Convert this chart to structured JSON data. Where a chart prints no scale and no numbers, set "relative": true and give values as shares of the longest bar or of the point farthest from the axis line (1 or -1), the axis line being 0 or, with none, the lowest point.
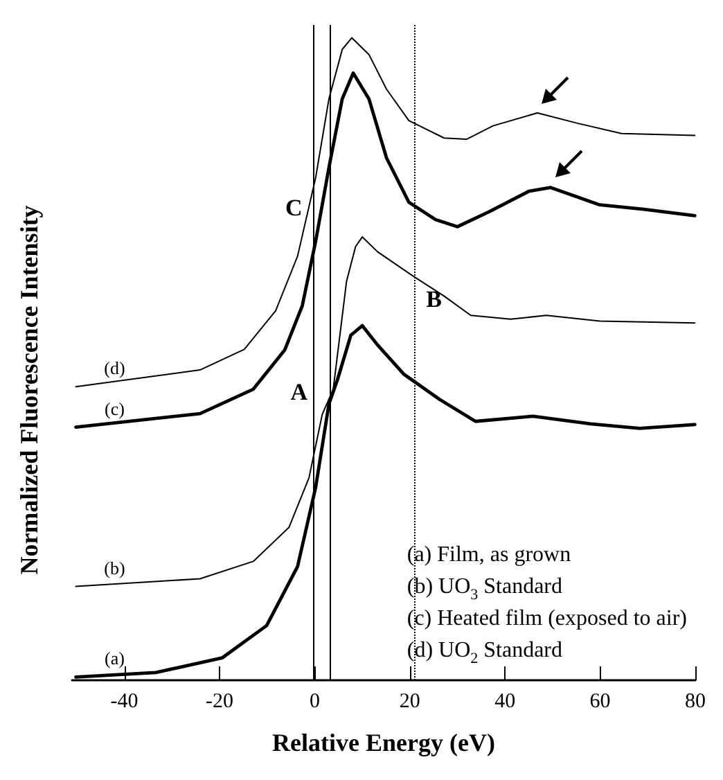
{
  "chart_data": {
    "type": "line",
    "relative": true,
    "xlabel": "Relative Energy (eV)",
    "ylabel": "Normalized Fluorescence Intensity",
    "xlim": [
      -51,
      80
    ],
    "xticks": [
      -40,
      -20,
      0,
      20,
      40,
      60,
      80
    ],
    "grid": false,
    "marker": "none",
    "series": [
      {
        "name": "(d)",
        "color": "#000000",
        "x": [
          -50.2,
          -24.1,
          -14.8,
          -8.2,
          -3.6,
          0.2,
          3.0,
          5.8,
          7.8,
          11.4,
          15.1,
          19.8,
          27.2,
          31.9,
          37.5,
          46.8,
          55.2,
          64.5,
          79.9
        ],
        "values": [
          0.457,
          0.483,
          0.515,
          0.575,
          0.66,
          0.782,
          0.905,
          0.982,
          1.0,
          0.974,
          0.92,
          0.871,
          0.844,
          0.842,
          0.863,
          0.883,
          0.867,
          0.851,
          0.848
        ]
      },
      {
        "name": "(c)",
        "color": "#000000",
        "x": [
          -50.2,
          -24.1,
          -12.9,
          -6.3,
          -2.6,
          0.2,
          3.0,
          5.8,
          8.1,
          11.4,
          15.1,
          19.8,
          25.4,
          30.0,
          36.6,
          45.0,
          49.6,
          59.9,
          69.2,
          79.9
        ],
        "values": [
          0.394,
          0.415,
          0.453,
          0.514,
          0.583,
          0.683,
          0.798,
          0.905,
          0.945,
          0.905,
          0.813,
          0.744,
          0.717,
          0.706,
          0.729,
          0.761,
          0.767,
          0.74,
          0.733,
          0.723
        ]
      },
      {
        "name": "(b)",
        "color": "#000000",
        "x": [
          -50.2,
          -24.1,
          -12.9,
          -5.4,
          -1.2,
          1.6,
          3.9,
          6.7,
          8.6,
          10.0,
          13.2,
          20.7,
          27.2,
          32.8,
          41.2,
          48.7,
          59.9,
          79.9
        ],
        "values": [
          0.146,
          0.158,
          0.185,
          0.238,
          0.315,
          0.414,
          0.453,
          0.621,
          0.675,
          0.69,
          0.667,
          0.629,
          0.598,
          0.568,
          0.562,
          0.568,
          0.559,
          0.556
        ]
      },
      {
        "name": "(a)",
        "color": "#000000",
        "x": [
          -50.2,
          -33.4,
          -19.4,
          -10.1,
          -3.6,
          0.2,
          3.0,
          4.8,
          7.6,
          10.0,
          13.2,
          18.8,
          26.3,
          33.8,
          45.9,
          58.0,
          68.3,
          79.9
        ],
        "values": [
          0.005,
          0.012,
          0.035,
          0.085,
          0.177,
          0.3,
          0.43,
          0.468,
          0.537,
          0.552,
          0.522,
          0.476,
          0.437,
          0.403,
          0.411,
          0.399,
          0.392,
          0.398
        ]
      }
    ],
    "ref_lines": [
      {
        "axis": "x",
        "value": 3.1,
        "label": "A",
        "line_style": "solid"
      },
      {
        "axis": "x",
        "value": 21,
        "label": "B",
        "line_style": "dotted"
      },
      {
        "axis": "x",
        "value": -0.3,
        "label": "C",
        "line_style": "solid"
      }
    ],
    "annotations": [
      "(a) Film, as grown",
      "(b) UO$_{3}$ Standard",
      "(c) Heated film (exposed to air)",
      "(d) UO$_{2}$ Standard"
    ]
  }
}
